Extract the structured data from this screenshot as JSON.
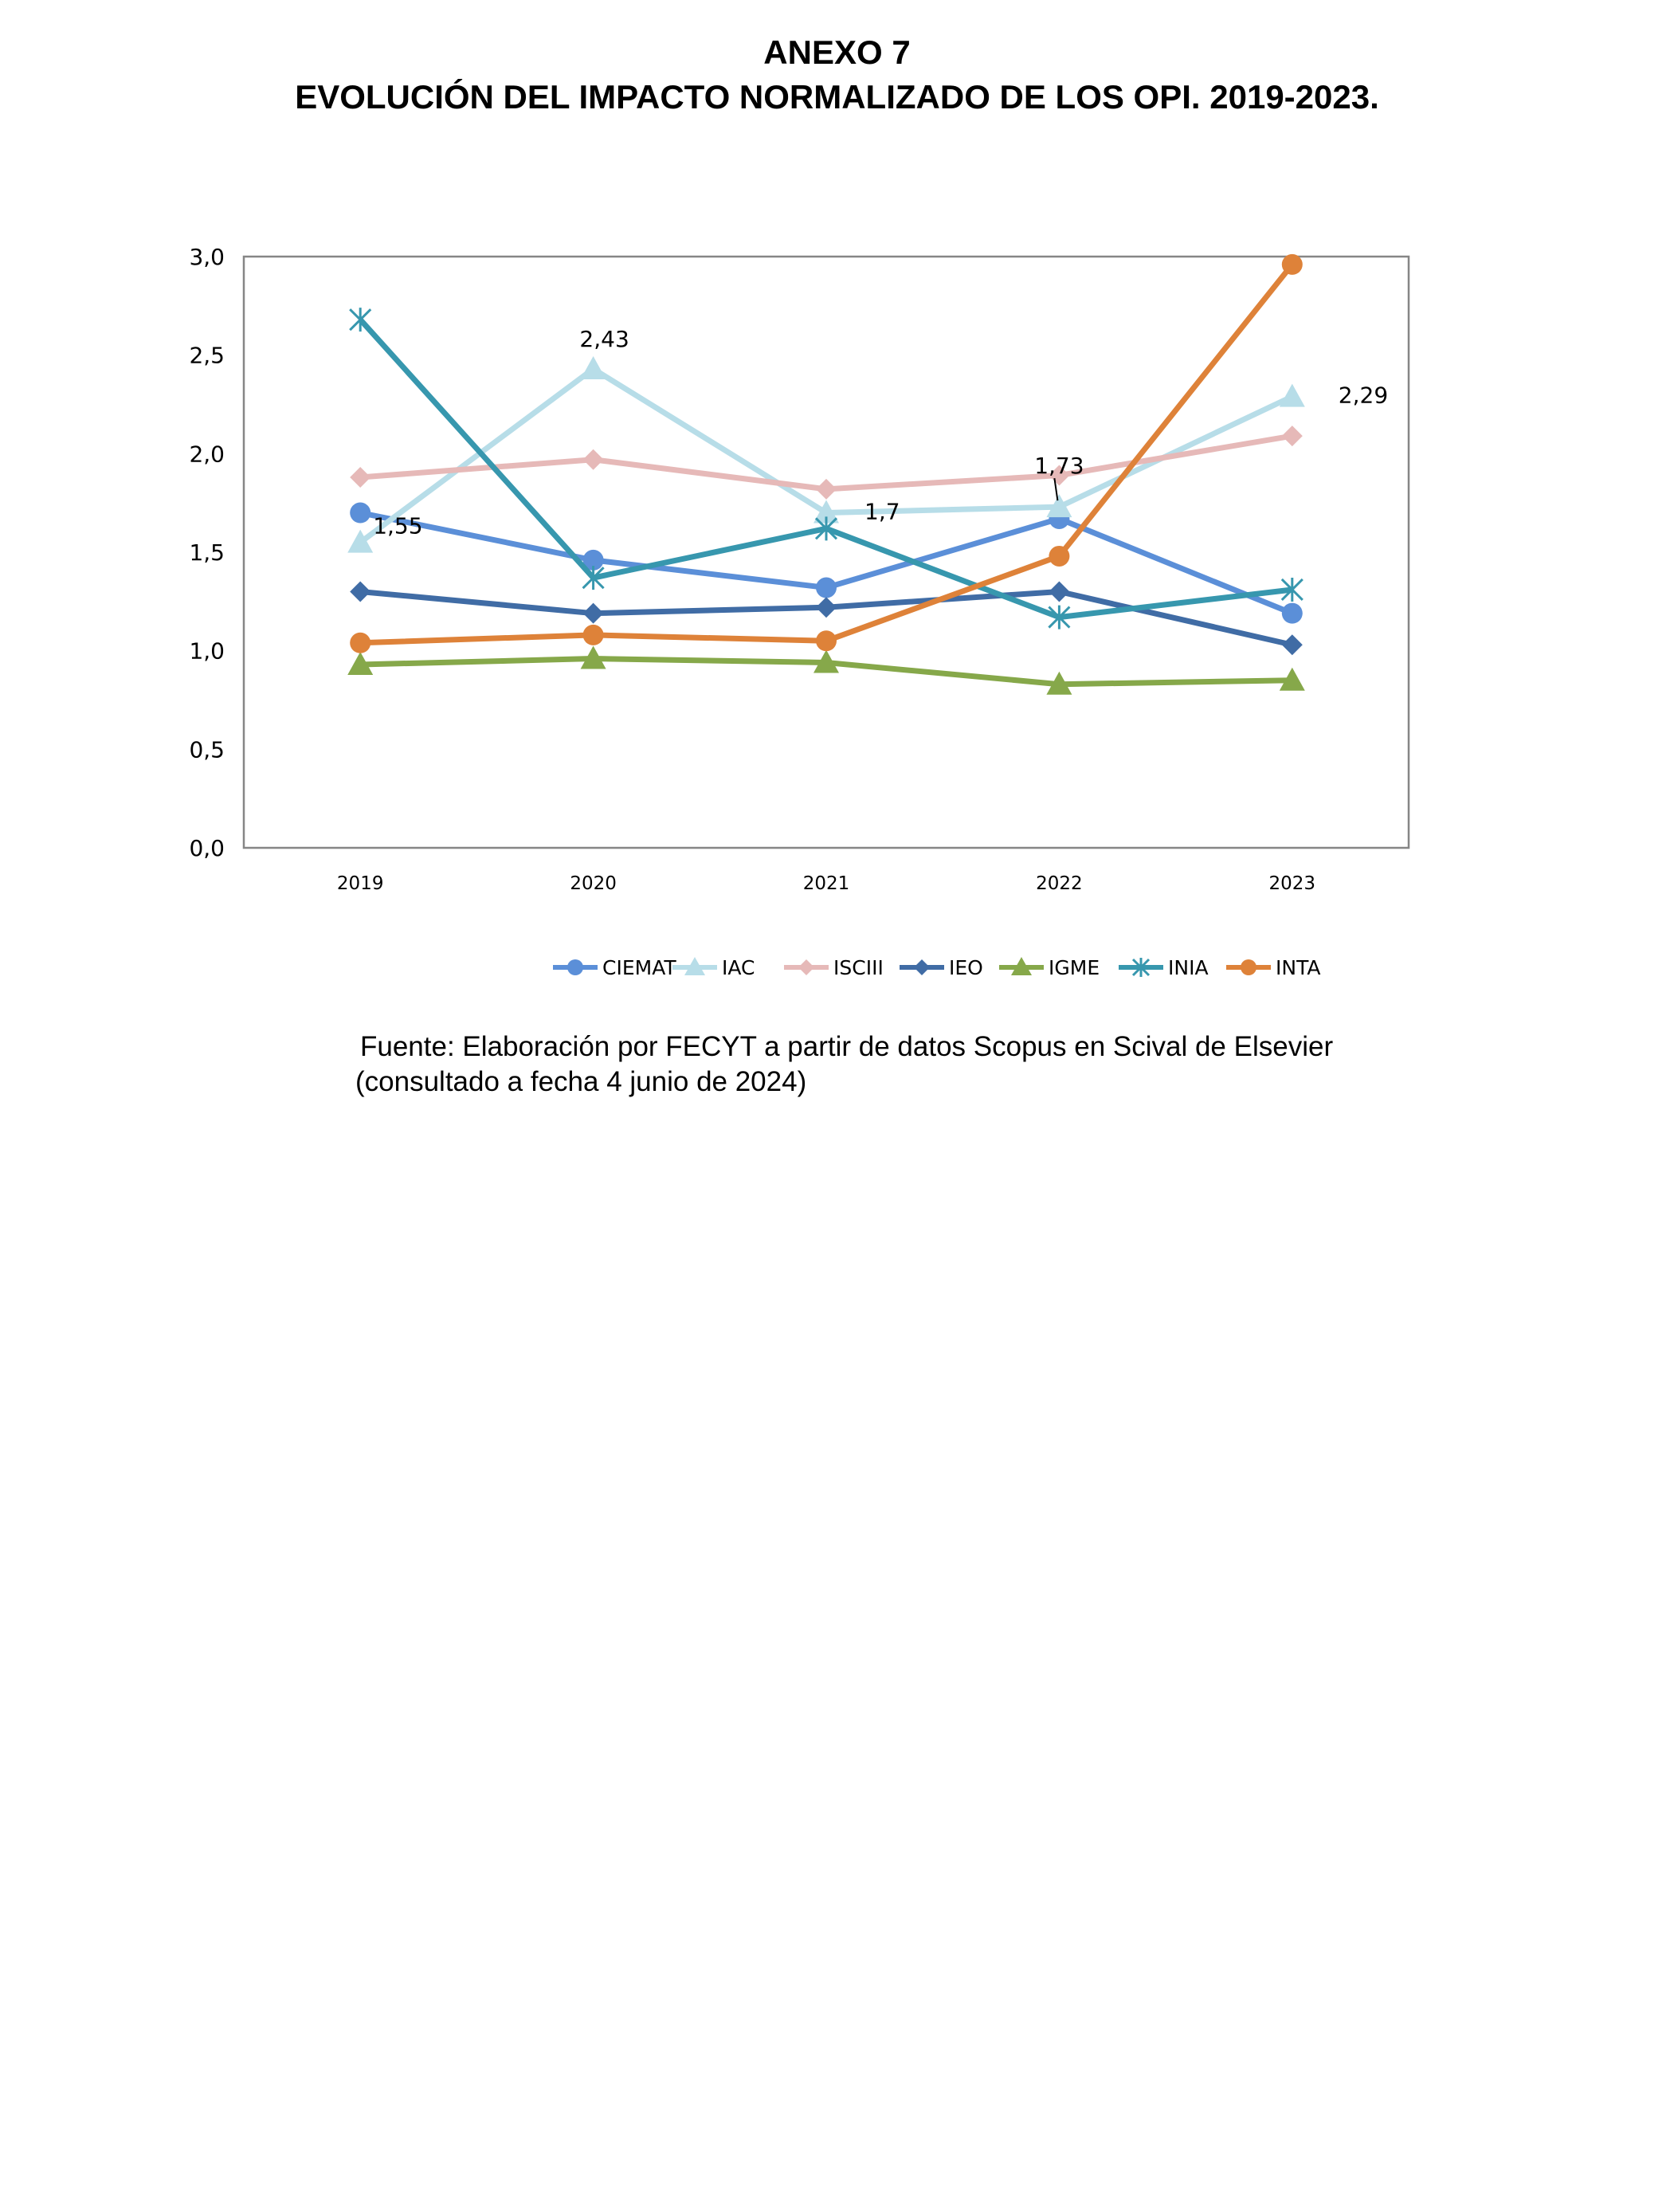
{
  "header": {
    "title_line1": "ANEXO 7",
    "title_line2": "EVOLUCIÓN DEL IMPACTO NORMALIZADO DE LOS OPI. 2019-2023."
  },
  "source": {
    "line1": "Fuente: Elaboración por FECYT a partir de datos Scopus en Scival de Elsevier",
    "line2": "(consultado a fecha 4 junio de 2024)"
  },
  "chart_data": {
    "type": "line",
    "title": "",
    "xlabel": "",
    "ylabel": "",
    "categories": [
      "2019",
      "2020",
      "2021",
      "2022",
      "2023"
    ],
    "ylim": [
      0,
      3.0
    ],
    "yticks": [
      "0,0",
      "0,5",
      "1,0",
      "1,5",
      "2,0",
      "2,5",
      "3,0"
    ],
    "grid": false,
    "legend": "bottom",
    "series": [
      {
        "name": "CIEMAT",
        "color": "#5B8FD8",
        "marker": "circle",
        "values": [
          1.7,
          1.46,
          1.32,
          1.67,
          1.19
        ]
      },
      {
        "name": "IAC",
        "color": "#B7DDE8",
        "marker": "triangle",
        "values": [
          1.55,
          2.43,
          1.7,
          1.73,
          2.29
        ],
        "labels": [
          "1,55",
          "2,43",
          "1,7",
          "1,73",
          "2,29"
        ]
      },
      {
        "name": "ISCIII",
        "color": "#E6B9B8",
        "marker": "diamond",
        "values": [
          1.88,
          1.97,
          1.82,
          1.89,
          2.09
        ]
      },
      {
        "name": "IEO",
        "color": "#406CA5",
        "marker": "diamond",
        "values": [
          1.3,
          1.19,
          1.22,
          1.3,
          1.03
        ]
      },
      {
        "name": "IGME",
        "color": "#86A84A",
        "marker": "triangle",
        "values": [
          0.93,
          0.96,
          0.94,
          0.83,
          0.85
        ]
      },
      {
        "name": "INIA",
        "color": "#3797AE",
        "marker": "star",
        "values": [
          2.68,
          1.37,
          1.62,
          1.17,
          1.31
        ]
      },
      {
        "name": "INTA",
        "color": "#DE8239",
        "marker": "circle",
        "values": [
          1.04,
          1.08,
          1.05,
          1.48,
          2.96
        ]
      }
    ]
  }
}
